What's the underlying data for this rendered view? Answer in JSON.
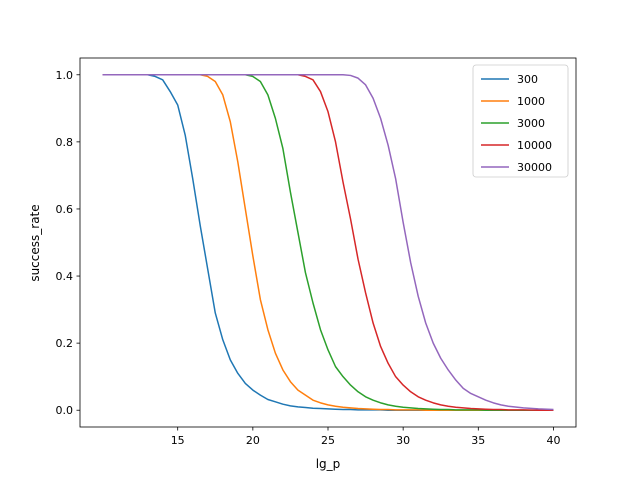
{
  "chart_data": {
    "type": "line",
    "title": "",
    "xlabel": "lg_p",
    "ylabel": "success_rate",
    "xlim": [
      8.5,
      41.5
    ],
    "ylim": [
      -0.05,
      1.05
    ],
    "xticks": [
      15,
      20,
      25,
      30,
      35,
      40
    ],
    "yticks": [
      0.0,
      0.2,
      0.4,
      0.6,
      0.8,
      1.0
    ],
    "xtick_labels": [
      "15",
      "20",
      "25",
      "30",
      "35",
      "40"
    ],
    "ytick_labels": [
      "0.0",
      "0.2",
      "0.4",
      "0.6",
      "0.8",
      "1.0"
    ],
    "grid": false,
    "legend_position": "top-right",
    "x": [
      10,
      11,
      12,
      13,
      13.5,
      14,
      14.5,
      15,
      15.5,
      16,
      16.5,
      17,
      17.5,
      18,
      18.5,
      19,
      19.5,
      20,
      20.5,
      21,
      21.5,
      22,
      22.5,
      23,
      23.5,
      24,
      24.5,
      25,
      25.5,
      26,
      26.5,
      27,
      27.5,
      28,
      28.5,
      29,
      29.5,
      30,
      30.5,
      31,
      31.5,
      32,
      32.5,
      33,
      33.5,
      34,
      34.5,
      35,
      35.5,
      36,
      36.5,
      37,
      38,
      39,
      40
    ],
    "series": [
      {
        "name": "300",
        "color": "#1f77b4",
        "values": [
          1.0,
          1.0,
          1.0,
          1.0,
          0.995,
          0.985,
          0.95,
          0.91,
          0.82,
          0.69,
          0.55,
          0.42,
          0.29,
          0.21,
          0.15,
          0.11,
          0.08,
          0.06,
          0.045,
          0.032,
          0.025,
          0.018,
          0.013,
          0.01,
          0.008,
          0.006,
          0.005,
          0.004,
          0.003,
          0.002,
          0.002,
          0.001,
          0.001,
          0.001,
          0.001,
          0.0,
          0.0,
          0.0,
          0.0,
          0.0,
          0.0,
          0.0,
          0.0,
          0.0,
          0.0,
          0.0,
          0.0,
          0.0,
          0.0,
          0.0,
          0.0,
          0.0,
          0.0,
          0.0,
          0.0
        ]
      },
      {
        "name": "1000",
        "color": "#ff7f0e",
        "values": [
          1.0,
          1.0,
          1.0,
          1.0,
          1.0,
          1.0,
          1.0,
          1.0,
          1.0,
          1.0,
          1.0,
          0.995,
          0.98,
          0.94,
          0.86,
          0.74,
          0.6,
          0.46,
          0.33,
          0.24,
          0.17,
          0.12,
          0.085,
          0.06,
          0.045,
          0.03,
          0.022,
          0.016,
          0.012,
          0.009,
          0.007,
          0.005,
          0.004,
          0.003,
          0.002,
          0.002,
          0.001,
          0.001,
          0.001,
          0.001,
          0.0,
          0.0,
          0.0,
          0.0,
          0.0,
          0.0,
          0.0,
          0.0,
          0.0,
          0.0,
          0.0,
          0.0,
          0.0,
          0.0,
          0.0
        ]
      },
      {
        "name": "3000",
        "color": "#2ca02c",
        "values": [
          1.0,
          1.0,
          1.0,
          1.0,
          1.0,
          1.0,
          1.0,
          1.0,
          1.0,
          1.0,
          1.0,
          1.0,
          1.0,
          1.0,
          1.0,
          1.0,
          1.0,
          0.995,
          0.98,
          0.94,
          0.87,
          0.78,
          0.65,
          0.53,
          0.41,
          0.32,
          0.24,
          0.18,
          0.13,
          0.1,
          0.075,
          0.055,
          0.04,
          0.03,
          0.022,
          0.016,
          0.012,
          0.009,
          0.007,
          0.005,
          0.004,
          0.003,
          0.002,
          0.002,
          0.001,
          0.001,
          0.001,
          0.001,
          0.0,
          0.0,
          0.0,
          0.0,
          0.0,
          0.0,
          0.0
        ]
      },
      {
        "name": "10000",
        "color": "#d62728",
        "values": [
          1.0,
          1.0,
          1.0,
          1.0,
          1.0,
          1.0,
          1.0,
          1.0,
          1.0,
          1.0,
          1.0,
          1.0,
          1.0,
          1.0,
          1.0,
          1.0,
          1.0,
          1.0,
          1.0,
          1.0,
          1.0,
          1.0,
          1.0,
          1.0,
          0.995,
          0.985,
          0.95,
          0.89,
          0.8,
          0.68,
          0.57,
          0.45,
          0.35,
          0.26,
          0.19,
          0.14,
          0.1,
          0.075,
          0.055,
          0.04,
          0.03,
          0.022,
          0.016,
          0.012,
          0.009,
          0.007,
          0.005,
          0.004,
          0.003,
          0.002,
          0.002,
          0.001,
          0.001,
          0.0,
          0.0
        ]
      },
      {
        "name": "30000",
        "color": "#9467bd",
        "values": [
          1.0,
          1.0,
          1.0,
          1.0,
          1.0,
          1.0,
          1.0,
          1.0,
          1.0,
          1.0,
          1.0,
          1.0,
          1.0,
          1.0,
          1.0,
          1.0,
          1.0,
          1.0,
          1.0,
          1.0,
          1.0,
          1.0,
          1.0,
          1.0,
          1.0,
          1.0,
          1.0,
          1.0,
          1.0,
          1.0,
          0.998,
          0.99,
          0.97,
          0.93,
          0.87,
          0.79,
          0.69,
          0.56,
          0.44,
          0.34,
          0.26,
          0.2,
          0.155,
          0.12,
          0.09,
          0.065,
          0.05,
          0.04,
          0.03,
          0.022,
          0.016,
          0.012,
          0.007,
          0.004,
          0.002
        ]
      }
    ]
  }
}
